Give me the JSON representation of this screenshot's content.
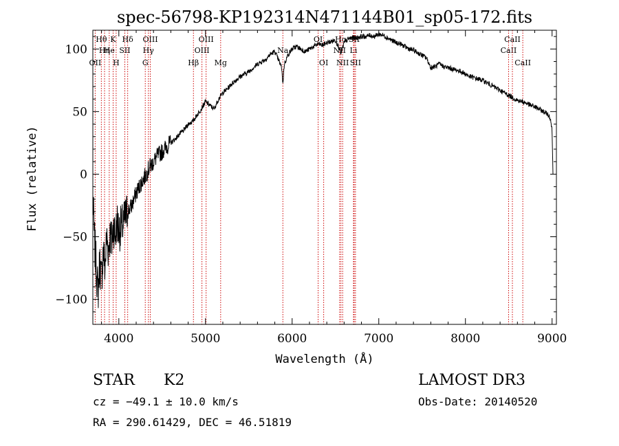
{
  "chart_data": {
    "type": "line",
    "title": "spec-56798-KP192314N471144B01_sp05-172.fits",
    "xlabel": "Wavelength (Å)",
    "ylabel": "Flux (relative)",
    "xlim": [
      3700,
      9050
    ],
    "ylim": [
      -120,
      115
    ],
    "x_ticks": [
      4000,
      5000,
      6000,
      7000,
      8000,
      9000
    ],
    "y_ticks": [
      -100,
      -50,
      0,
      50,
      100
    ],
    "x_tick_labels": [
      "4000",
      "5000",
      "6000",
      "7000",
      "8000",
      "9000"
    ],
    "y_tick_labels": [
      "−100",
      "−50",
      "0",
      "50",
      "100"
    ],
    "grid": false,
    "line_color": "#000000",
    "marker_color": "#cc0000",
    "series": [
      {
        "name": "flux",
        "x": [
          3700,
          3720,
          3740,
          3760,
          3780,
          3800,
          3820,
          3840,
          3860,
          3880,
          3900,
          3920,
          3940,
          3960,
          3980,
          4000,
          4050,
          4100,
          4150,
          4200,
          4250,
          4300,
          4350,
          4400,
          4450,
          4500,
          4550,
          4600,
          4650,
          4700,
          4750,
          4800,
          4850,
          4900,
          4950,
          5000,
          5050,
          5100,
          5150,
          5200,
          5250,
          5300,
          5350,
          5400,
          5450,
          5500,
          5550,
          5600,
          5650,
          5700,
          5750,
          5800,
          5850,
          5880,
          5893,
          5910,
          5950,
          6000,
          6050,
          6100,
          6150,
          6200,
          6250,
          6300,
          6350,
          6400,
          6450,
          6500,
          6550,
          6563,
          6600,
          6650,
          6700,
          6750,
          6800,
          6850,
          6900,
          6950,
          7000,
          7050,
          7100,
          7150,
          7200,
          7250,
          7300,
          7350,
          7400,
          7450,
          7500,
          7550,
          7600,
          7650,
          7700,
          7750,
          7800,
          7850,
          7900,
          7950,
          8000,
          8050,
          8100,
          8150,
          8200,
          8250,
          8300,
          8350,
          8400,
          8450,
          8500,
          8550,
          8600,
          8650,
          8700,
          8750,
          8800,
          8850,
          8900,
          8950,
          8980,
          9000,
          9010
        ],
        "values": [
          -20,
          -55,
          -75,
          -95,
          -70,
          -85,
          -60,
          -75,
          -50,
          -60,
          -48,
          -55,
          -40,
          -50,
          -38,
          -45,
          -40,
          -30,
          -25,
          -15,
          -8,
          -2,
          5,
          10,
          15,
          18,
          22,
          25,
          28,
          32,
          35,
          40,
          42,
          47,
          52,
          58,
          55,
          52,
          60,
          65,
          68,
          72,
          75,
          78,
          80,
          82,
          85,
          88,
          90,
          92,
          96,
          98,
          90,
          85,
          72,
          88,
          95,
          100,
          102,
          100,
          98,
          100,
          102,
          104,
          103,
          105,
          106,
          107,
          100,
          96,
          105,
          108,
          109,
          109,
          110,
          110,
          111,
          110,
          112,
          111,
          109,
          107,
          105,
          104,
          102,
          100,
          99,
          97,
          95,
          93,
          85,
          86,
          88,
          86,
          85,
          84,
          83,
          82,
          80,
          78,
          77,
          76,
          75,
          73,
          71,
          69,
          67,
          65,
          63,
          61,
          59,
          58,
          57,
          55,
          54,
          52,
          50,
          48,
          45,
          35,
          0
        ]
      }
    ],
    "line_markers": [
      {
        "label": "Hθ",
        "x": 3798,
        "row": 1
      },
      {
        "label": "OII",
        "x": 3727,
        "row": 3
      },
      {
        "label": "Hη",
        "x": 3835,
        "row": 2
      },
      {
        "label": "K",
        "x": 3934,
        "row": 1
      },
      {
        "label": "He",
        "x": 3889,
        "row": 2
      },
      {
        "label": "H",
        "x": 3969,
        "row": 3
      },
      {
        "label": "SII",
        "x": 4069,
        "row": 2
      },
      {
        "label": "Hδ",
        "x": 4102,
        "row": 1
      },
      {
        "label": "OIII",
        "x": 4363,
        "row": 1
      },
      {
        "label": "Hγ",
        "x": 4341,
        "row": 2
      },
      {
        "label": "G",
        "x": 4305,
        "row": 3
      },
      {
        "label": "Hβ",
        "x": 4861,
        "row": 3
      },
      {
        "label": "OIII",
        "x": 4959,
        "row": 2
      },
      {
        "label": "OIII",
        "x": 5007,
        "row": 1
      },
      {
        "label": "Mg",
        "x": 5175,
        "row": 3
      },
      {
        "label": "Na",
        "x": 5893,
        "row": 2
      },
      {
        "label": "OI",
        "x": 6300,
        "row": 1
      },
      {
        "label": "OI",
        "x": 6364,
        "row": 3
      },
      {
        "label": "Hα",
        "x": 6563,
        "row": 1
      },
      {
        "label": "NII",
        "x": 6548,
        "row": 2
      },
      {
        "label": "NII",
        "x": 6583,
        "row": 3
      },
      {
        "label": "Li",
        "x": 6708,
        "row": 2
      },
      {
        "label": "SII",
        "x": 6716,
        "row": 1
      },
      {
        "label": "SII",
        "x": 6731,
        "row": 3
      },
      {
        "label": "CaII",
        "x": 8498,
        "row": 2
      },
      {
        "label": "CaII",
        "x": 8542,
        "row": 1
      },
      {
        "label": "CaII",
        "x": 8662,
        "row": 3
      }
    ]
  },
  "info": {
    "object_class": "STAR",
    "subclass": "K2",
    "survey": "LAMOST DR3",
    "redshift": "cz = −49.1 ± 10.0 km/s",
    "obs_date": "Obs-Date: 20140520",
    "coordinates": "RA = 290.61429, DEC =  46.51819"
  }
}
